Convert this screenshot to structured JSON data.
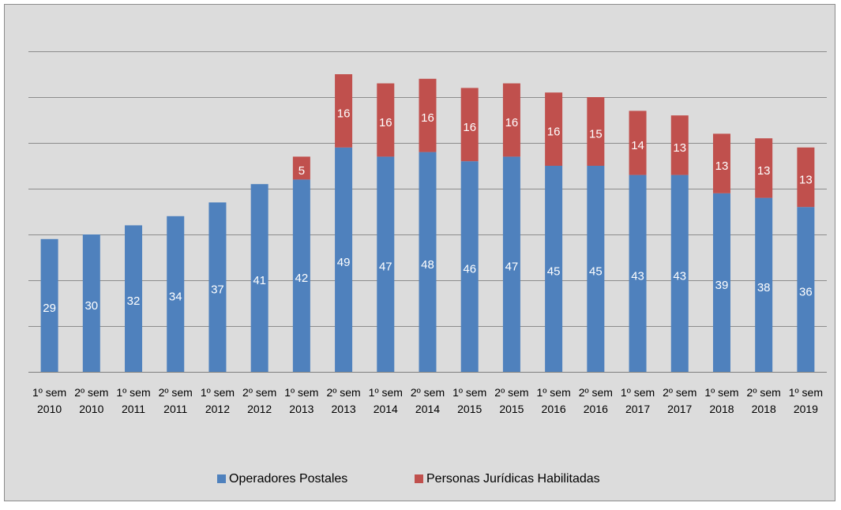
{
  "chart_data": {
    "type": "stacked_bar",
    "categories": [
      "1º sem 2010",
      "2º sem 2010",
      "1º sem 2011",
      "2º sem 2011",
      "1º sem 2012",
      "2º sem 2012",
      "1º sem 2013",
      "2º sem 2013",
      "1º sem 2014",
      "2º sem 2014",
      "1º sem 2015",
      "2º sem 2015",
      "1º sem 2016",
      "2º sem 2016",
      "1º sem 2017",
      "2º sem 2017",
      "1º sem 2018",
      "2º sem 2018",
      "1º sem 2019"
    ],
    "series": [
      {
        "name": "Operadores Postales",
        "color": "#4f81bd",
        "values": [
          29,
          30,
          32,
          34,
          37,
          41,
          42,
          49,
          47,
          48,
          46,
          47,
          45,
          45,
          43,
          43,
          39,
          38,
          36
        ]
      },
      {
        "name": "Personas Jurídicas Habilitadas",
        "color": "#c0504d",
        "values": [
          null,
          null,
          null,
          null,
          null,
          null,
          5,
          16,
          16,
          16,
          16,
          16,
          16,
          15,
          14,
          13,
          13,
          13,
          13
        ]
      }
    ],
    "ylim": [
      0,
      70
    ],
    "yticks": [
      0,
      10,
      20,
      30,
      40,
      50,
      60,
      70
    ],
    "grid": true,
    "legend": "bottom"
  }
}
